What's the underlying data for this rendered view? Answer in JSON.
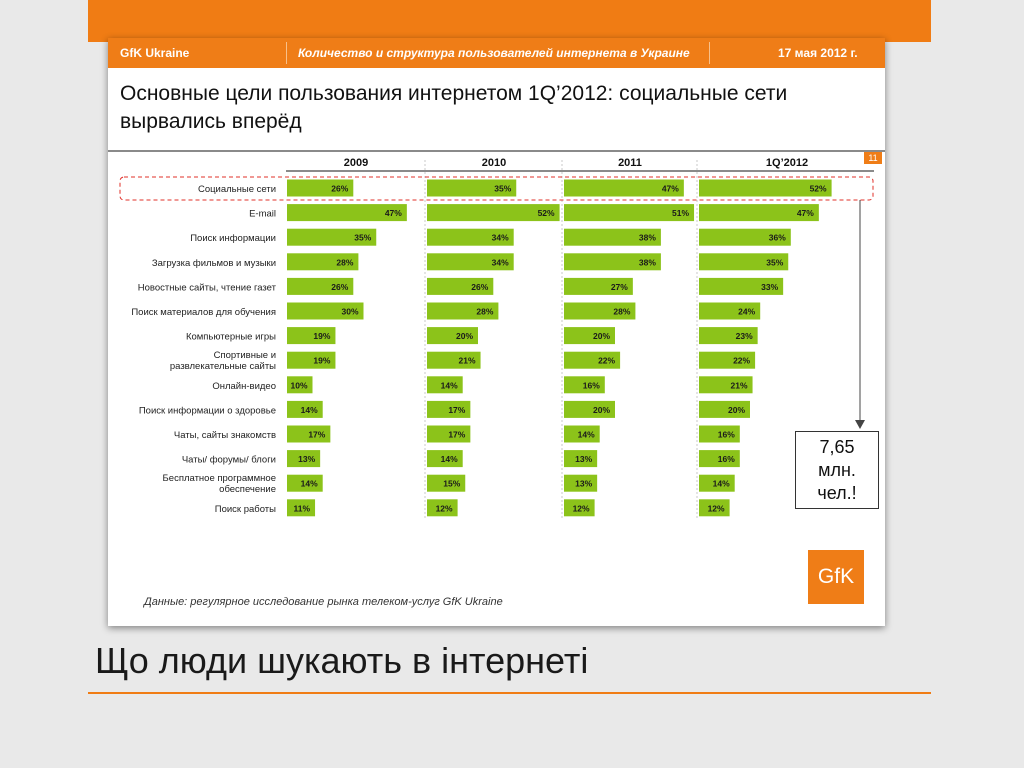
{
  "header": {
    "brand": "GfK Ukraine",
    "subject": "Количество и структура пользователей интернета в Украине",
    "date": "17 мая 2012 г."
  },
  "slide_title": "Основные цели пользования интернетом 1Q’2012: социальные сети вырвались вперёд",
  "page_number": "11",
  "callout": {
    "value": "7,65",
    "unit": "млн.",
    "label": "чел.!"
  },
  "source_note": "Данные: регулярное исследование рынка телеком-услуг GfK Ukraine",
  "logo_text": "GfK",
  "caption": "Що люди шукають в інтернеті",
  "colors": {
    "accent": "#ef7d17",
    "bar": "#8cc31a"
  },
  "chart_data": {
    "type": "bar",
    "orientation": "horizontal",
    "categories": [
      "Социальные сети",
      "E-mail",
      "Поиск информации",
      "Загрузка фильмов и музыки",
      "Новостные сайты, чтение газет",
      "Поиск материалов для обучения",
      "Компьютерные игры",
      "Спортивные и развлекательные сайты",
      "Онлайн-видео",
      "Поиск информации о здоровье",
      "Чаты, сайты знакомств",
      "Чаты/ форумы/ блоги",
      "Бесплатное программное обеспечение",
      "Поиск работы"
    ],
    "series": [
      {
        "name": "2009",
        "values": [
          26,
          47,
          35,
          28,
          26,
          30,
          19,
          19,
          10,
          14,
          17,
          13,
          14,
          11
        ]
      },
      {
        "name": "2010",
        "values": [
          35,
          52,
          34,
          34,
          26,
          28,
          20,
          21,
          14,
          17,
          17,
          14,
          15,
          12
        ]
      },
      {
        "name": "2011",
        "values": [
          47,
          51,
          38,
          38,
          27,
          28,
          20,
          22,
          16,
          20,
          14,
          13,
          13,
          12
        ]
      },
      {
        "name": "1Q’2012",
        "values": [
          52,
          47,
          36,
          35,
          33,
          24,
          23,
          22,
          21,
          20,
          16,
          16,
          14,
          12
        ]
      }
    ],
    "value_suffix": "%",
    "highlighted_category": "Социальные сети"
  }
}
